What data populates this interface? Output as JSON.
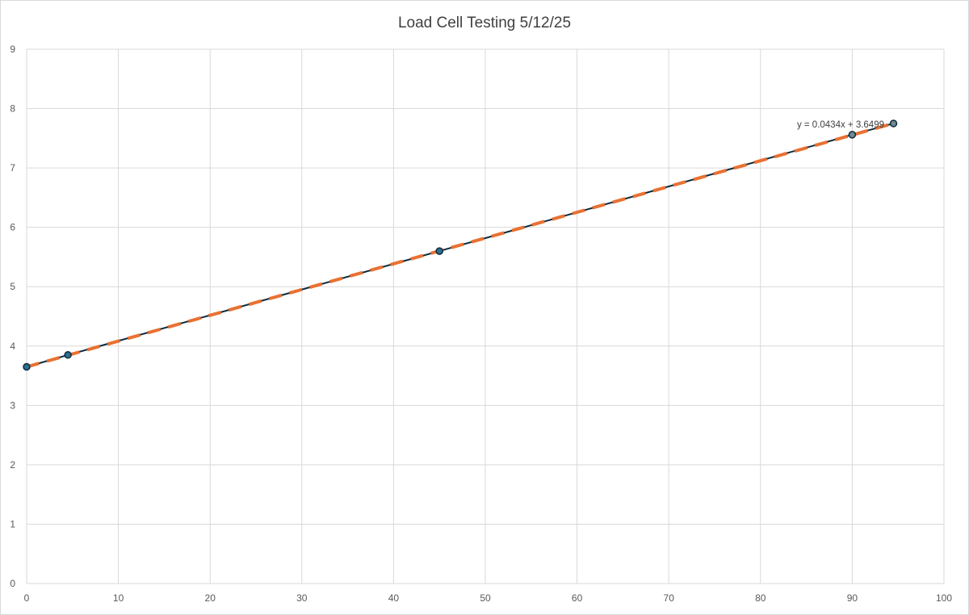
{
  "chart_data": {
    "type": "scatter",
    "title": "Load Cell Testing 5/12/25",
    "xlabel": "",
    "ylabel": "",
    "xlim": [
      0,
      100
    ],
    "ylim": [
      0,
      9
    ],
    "x_ticks": [
      0,
      10,
      20,
      30,
      40,
      50,
      60,
      70,
      80,
      90,
      100
    ],
    "y_ticks": [
      0,
      1,
      2,
      3,
      4,
      5,
      6,
      7,
      8,
      9
    ],
    "grid": true,
    "legend": "none",
    "series": [
      {
        "x": [
          0,
          4.5,
          45,
          90,
          94.5
        ],
        "y": [
          3.65,
          3.85,
          5.6,
          7.56,
          7.75
        ],
        "style": "line-with-markers",
        "line_color": "#0e2a3b",
        "marker_color": "#2a6f8f"
      }
    ],
    "trendline": {
      "type": "linear",
      "slope": 0.0434,
      "intercept": 3.6499,
      "equation_label": "y = 0.0434x + 3.6499",
      "color": "#e97132",
      "dash": true
    }
  }
}
